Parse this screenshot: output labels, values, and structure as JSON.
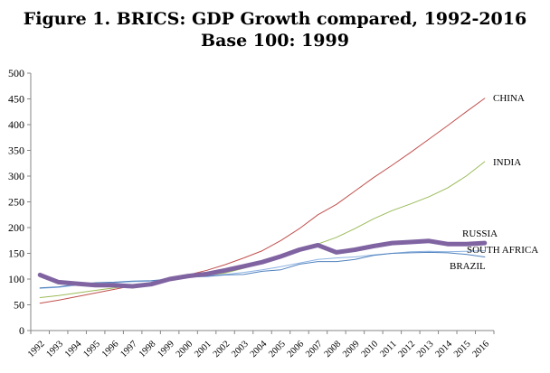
{
  "chart_data": {
    "type": "line",
    "title": "Figure 1. BRICS: GDP Growth compared, 1992-2016",
    "subtitle": "Base 100: 1999",
    "xlabel": "",
    "ylabel": "",
    "ylim": [
      0,
      500
    ],
    "yticks": [
      0,
      50,
      100,
      150,
      200,
      250,
      300,
      350,
      400,
      450,
      500
    ],
    "grid": false,
    "legend": "none",
    "categories": [
      "1992",
      "1993",
      "1994",
      "1995",
      "1996",
      "1997",
      "1998",
      "1999",
      "2000",
      "2001",
      "2002",
      "2003",
      "2004",
      "2005",
      "2006",
      "2007",
      "2008",
      "2009",
      "2010",
      "2011",
      "2012",
      "2013",
      "2014",
      "2015",
      "2016"
    ],
    "series": [
      {
        "name": "CHINA",
        "color": "#c0504d",
        "width": 1,
        "values": [
          53,
          59,
          66,
          73,
          80,
          87,
          93,
          100,
          108,
          117,
          128,
          141,
          155,
          175,
          198,
          225,
          245,
          271,
          297,
          321,
          346,
          372,
          398,
          425,
          451
        ]
      },
      {
        "name": "INDIA",
        "color": "#9bbb59",
        "width": 1,
        "values": [
          64,
          68,
          73,
          78,
          83,
          87,
          92,
          100,
          103,
          107,
          112,
          121,
          131,
          143,
          156,
          168,
          181,
          198,
          217,
          233,
          246,
          260,
          277,
          300,
          328
        ]
      },
      {
        "name": "RUSSIA",
        "color": "#8064a2",
        "width": 5,
        "values": [
          108,
          94,
          91,
          88,
          88,
          86,
          90,
          100,
          106,
          110,
          117,
          125,
          133,
          144,
          157,
          166,
          152,
          157,
          164,
          170,
          172,
          174,
          168,
          168,
          170
        ]
      },
      {
        "name": "SOUTH AFRICA",
        "color": "#8db3e2",
        "width": 1,
        "values": [
          82,
          84,
          88,
          91,
          93,
          95,
          96,
          100,
          104,
          106,
          109,
          113,
          118,
          124,
          131,
          138,
          141,
          143,
          147,
          150,
          153,
          154,
          153,
          154,
          155
        ]
      },
      {
        "name": "BRAZIL",
        "color": "#4f81bd",
        "width": 1,
        "values": [
          83,
          85,
          90,
          93,
          94,
          96,
          97,
          100,
          104,
          105,
          108,
          109,
          115,
          118,
          129,
          134,
          134,
          138,
          146,
          150,
          151,
          152,
          151,
          148,
          143
        ]
      }
    ]
  }
}
